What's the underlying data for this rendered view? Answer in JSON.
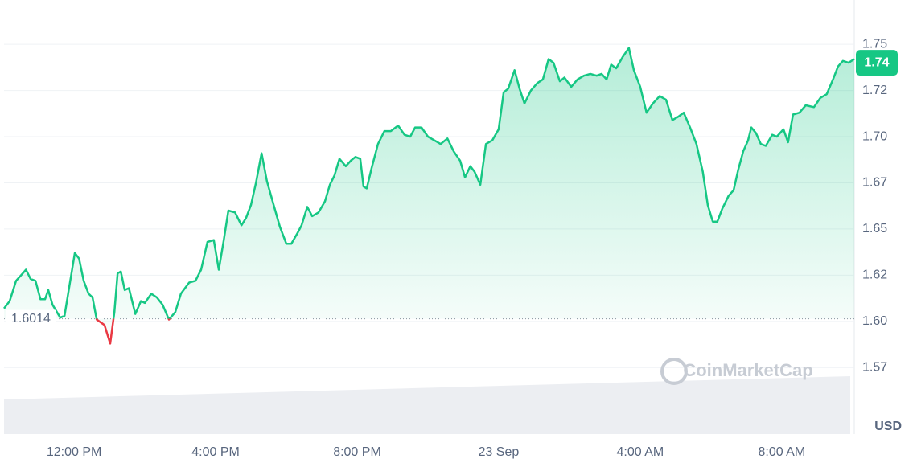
{
  "chart_data": {
    "type": "line",
    "series": [
      {
        "name": "Price",
        "color": "#16c784",
        "negative_color": "#ea3943",
        "x": [
          -1.98,
          -1.82,
          -1.64,
          -1.45,
          -1.36,
          -1.23,
          -1.09,
          -0.95,
          -0.82,
          -0.73,
          -0.61,
          -0.39,
          -0.27,
          -0.09,
          0.02,
          0.14,
          0.27,
          0.41,
          0.52,
          0.64,
          0.86,
          1.02,
          1.14,
          1.23,
          1.32,
          1.43,
          1.55,
          1.73,
          1.89,
          2.0,
          2.18,
          2.34,
          2.5,
          2.68,
          2.86,
          3.02,
          3.25,
          3.43,
          3.59,
          3.77,
          3.95,
          4.09,
          4.23,
          4.36,
          4.55,
          4.73,
          4.86,
          5.0,
          5.14,
          5.3,
          5.45,
          5.64,
          5.82,
          6.0,
          6.14,
          6.32,
          6.43,
          6.59,
          6.73,
          6.91,
          7.09,
          7.23,
          7.36,
          7.5,
          7.68,
          7.82,
          7.95,
          8.09,
          8.18,
          8.27,
          8.41,
          8.59,
          8.77,
          8.95,
          9.16,
          9.34,
          9.5,
          9.64,
          9.82,
          10.0,
          10.18,
          10.36,
          10.55,
          10.73,
          10.91,
          11.05,
          11.2,
          11.32,
          11.48,
          11.64,
          11.82,
          12.0,
          12.14,
          12.27,
          12.45,
          12.59,
          12.73,
          12.91,
          13.09,
          13.25,
          13.41,
          13.55,
          13.73,
          13.86,
          14.05,
          14.23,
          14.41,
          14.59,
          14.77,
          14.91,
          15.05,
          15.18,
          15.32,
          15.5,
          15.68,
          15.82,
          16.0,
          16.18,
          16.36,
          16.55,
          16.73,
          16.91,
          17.09,
          17.23,
          17.41,
          17.59,
          17.77,
          17.91,
          18.05,
          18.18,
          18.32,
          18.5,
          18.64,
          18.77,
          18.91,
          19.05,
          19.14,
          19.27,
          19.41,
          19.55,
          19.73,
          19.86,
          20.05,
          20.18,
          20.32,
          20.5,
          20.68,
          20.91,
          21.09,
          21.27,
          21.45,
          21.59,
          21.73,
          21.89,
          22.05
        ],
        "values": [
          1.607,
          1.611,
          1.622,
          1.626,
          1.628,
          1.623,
          1.622,
          1.612,
          1.612,
          1.617,
          1.609,
          1.602,
          1.603,
          1.624,
          1.637,
          1.634,
          1.622,
          1.615,
          1.613,
          1.601,
          1.598,
          1.588,
          1.605,
          1.626,
          1.627,
          1.617,
          1.618,
          1.604,
          1.611,
          1.61,
          1.615,
          1.613,
          1.609,
          1.601,
          1.605,
          1.615,
          1.621,
          1.622,
          1.628,
          1.643,
          1.644,
          1.628,
          1.644,
          1.66,
          1.659,
          1.652,
          1.656,
          1.663,
          1.675,
          1.691,
          1.676,
          1.663,
          1.651,
          1.642,
          1.642,
          1.648,
          1.652,
          1.662,
          1.657,
          1.659,
          1.665,
          1.674,
          1.679,
          1.688,
          1.684,
          1.687,
          1.689,
          1.688,
          1.673,
          1.672,
          1.683,
          1.696,
          1.703,
          1.703,
          1.706,
          1.701,
          1.7,
          1.705,
          1.705,
          1.7,
          1.698,
          1.696,
          1.699,
          1.692,
          1.687,
          1.678,
          1.684,
          1.681,
          1.674,
          1.696,
          1.698,
          1.704,
          1.724,
          1.726,
          1.736,
          1.726,
          1.718,
          1.725,
          1.729,
          1.731,
          1.742,
          1.74,
          1.73,
          1.732,
          1.727,
          1.731,
          1.733,
          1.734,
          1.733,
          1.734,
          1.731,
          1.739,
          1.737,
          1.743,
          1.748,
          1.736,
          1.727,
          1.713,
          1.718,
          1.722,
          1.72,
          1.709,
          1.711,
          1.713,
          1.705,
          1.696,
          1.681,
          1.663,
          1.654,
          1.654,
          1.661,
          1.668,
          1.671,
          1.682,
          1.692,
          1.698,
          1.705,
          1.702,
          1.696,
          1.695,
          1.701,
          1.7,
          1.704,
          1.697,
          1.712,
          1.713,
          1.717,
          1.716,
          1.721,
          1.723,
          1.731,
          1.738,
          1.741,
          1.74,
          1.742
        ]
      }
    ],
    "baseline": 1.6014,
    "current_price": 1.74,
    "unit": "USD",
    "watermark": "CoinMarketCap",
    "xlim": [
      -1.98,
      22.05
    ],
    "xticks": [
      {
        "value": 0,
        "label": "12:00 PM"
      },
      {
        "value": 4,
        "label": "4:00 PM"
      },
      {
        "value": 8,
        "label": "8:00 PM"
      },
      {
        "value": 12,
        "label": "23 Sep"
      },
      {
        "value": 16,
        "label": "4:00 AM"
      },
      {
        "value": 20,
        "label": "8:00 AM"
      }
    ],
    "ylim": [
      1.539,
      1.774
    ],
    "yticks": [
      {
        "value": 1.575,
        "label": "1.57"
      },
      {
        "value": 1.6,
        "label": "1.60"
      },
      {
        "value": 1.625,
        "label": "1.62"
      },
      {
        "value": 1.65,
        "label": "1.65"
      },
      {
        "value": 1.675,
        "label": "1.67"
      },
      {
        "value": 1.7,
        "label": "1.70"
      },
      {
        "value": 1.725,
        "label": "1.72"
      },
      {
        "value": 1.75,
        "label": "1.75"
      }
    ],
    "grid": true
  }
}
